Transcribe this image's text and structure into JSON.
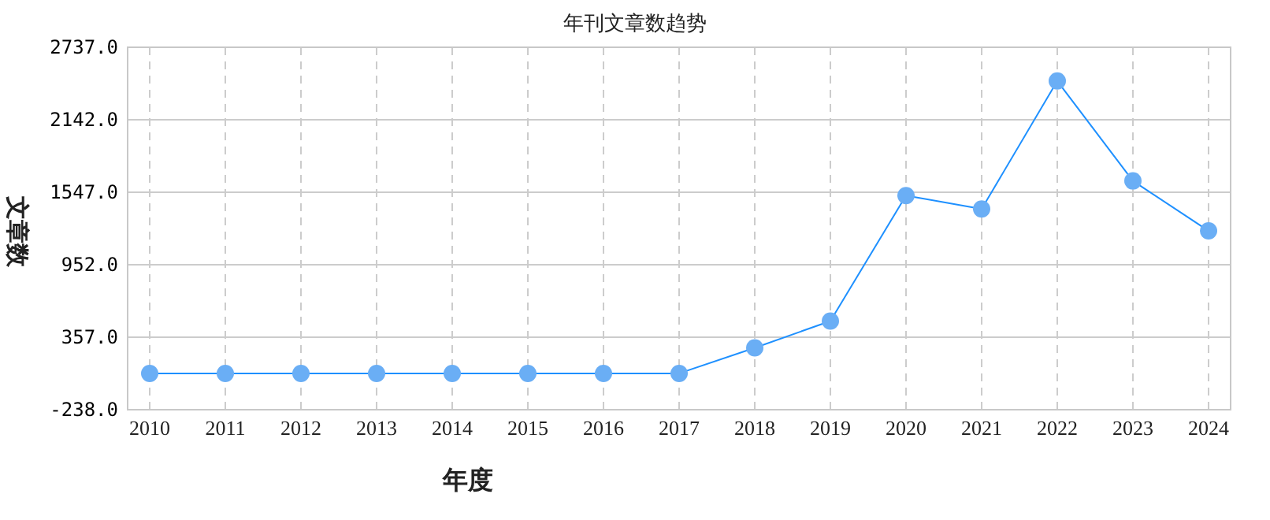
{
  "chart_data": {
    "type": "line",
    "title": "年刊文章数趋势",
    "xlabel": "年度",
    "ylabel": "文章数",
    "categories": [
      "2010",
      "2011",
      "2012",
      "2013",
      "2014",
      "2015",
      "2016",
      "2017",
      "2018",
      "2019",
      "2020",
      "2021",
      "2022",
      "2023",
      "2024"
    ],
    "series": [
      {
        "color": "#1e90ff",
        "values": [
          60,
          60,
          60,
          60,
          60,
          60,
          60,
          60,
          270,
          490,
          1520,
          1410,
          2460,
          1640,
          1230
        ]
      }
    ],
    "ylim": [
      -238,
      2737
    ],
    "yticks": [
      {
        "value": -238,
        "label": "-238.0"
      },
      {
        "value": 357,
        "label": "357.0"
      },
      {
        "value": 952,
        "label": "952.0"
      },
      {
        "value": 1547,
        "label": "1547.0"
      },
      {
        "value": 2142,
        "label": "2142.0"
      },
      {
        "value": 2737,
        "label": "2737.0"
      }
    ],
    "grid": true,
    "marker": "circle",
    "line_style": "solid"
  }
}
